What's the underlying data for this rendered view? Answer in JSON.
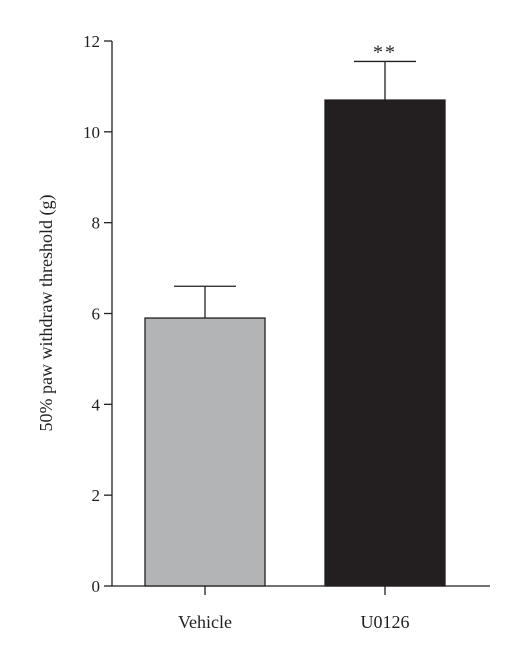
{
  "chart_data": {
    "type": "bar",
    "ylabel": "50% paw withdraw threshold (g)",
    "ylim": [
      0,
      12
    ],
    "yticks": [
      0,
      2,
      4,
      6,
      8,
      10,
      12
    ],
    "categories": [
      "Vehicle",
      "U0126"
    ],
    "values": [
      5.9,
      10.7
    ],
    "errors": [
      0.7,
      0.85
    ],
    "colors": [
      "#b3b4b6",
      "#231f20"
    ],
    "annotations": [
      "",
      "**"
    ],
    "grid": false,
    "legend": "none"
  }
}
